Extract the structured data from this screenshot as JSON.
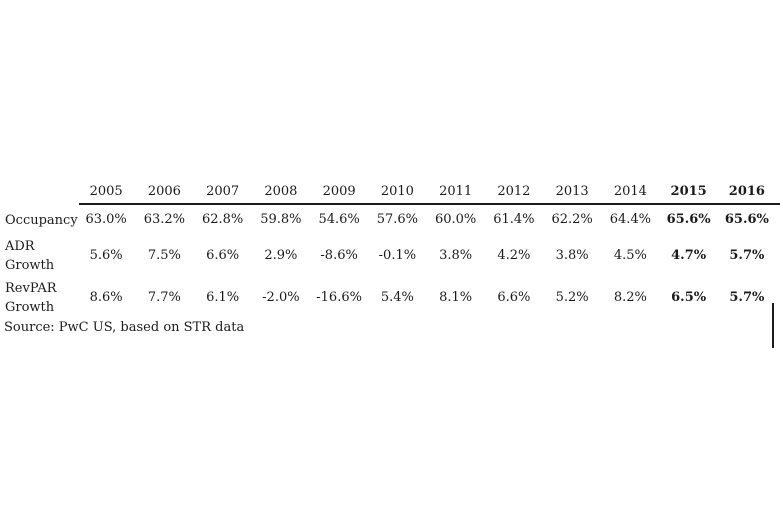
{
  "table": {
    "years": [
      "2005",
      "2006",
      "2007",
      "2008",
      "2009",
      "2010",
      "2011",
      "2012",
      "2013",
      "2014",
      "2015",
      "2016"
    ],
    "bold_years": [
      "2015",
      "2016"
    ],
    "rows": [
      {
        "id": "occupancy",
        "label": "Occupancy",
        "label_lines": [
          "Occupancy"
        ],
        "values": [
          "63.0%",
          "63.2%",
          "62.8%",
          "59.8%",
          "54.6%",
          "57.6%",
          "60.0%",
          "61.4%",
          "62.2%",
          "64.4%",
          "65.6%",
          "65.6%"
        ]
      },
      {
        "id": "adr-growth",
        "label": "ADR Growth",
        "label_lines": [
          "ADR",
          "Growth"
        ],
        "values": [
          "5.6%",
          "7.5%",
          "6.6%",
          "2.9%",
          "-8.6%",
          "-0.1%",
          "3.8%",
          "4.2%",
          "3.8%",
          "4.5%",
          "4.7%",
          "5.7%"
        ]
      },
      {
        "id": "revpar-growth",
        "label": "RevPAR Growth",
        "label_lines": [
          "RevPAR",
          "Growth"
        ],
        "values": [
          "8.6%",
          "7.7%",
          "6.1%",
          "-2.0%",
          "-16.6%",
          "5.4%",
          "8.1%",
          "6.6%",
          "5.2%",
          "8.2%",
          "6.5%",
          "5.7%"
        ]
      }
    ],
    "source_note": "Source: PwC US, based on STR data"
  },
  "colors": {
    "text": "#1b1b1b",
    "rule": "#1b1b1b",
    "background": "#ffffff"
  },
  "chart_data": {
    "type": "table",
    "categories": [
      "2005",
      "2006",
      "2007",
      "2008",
      "2009",
      "2010",
      "2011",
      "2012",
      "2013",
      "2014",
      "2015",
      "2016"
    ],
    "series": [
      {
        "name": "Occupancy",
        "unit": "%",
        "values": [
          63.0,
          63.2,
          62.8,
          59.8,
          54.6,
          57.6,
          60.0,
          61.4,
          62.2,
          64.4,
          65.6,
          65.6
        ]
      },
      {
        "name": "ADR Growth",
        "unit": "%",
        "values": [
          5.6,
          7.5,
          6.6,
          2.9,
          -8.6,
          -0.1,
          3.8,
          4.2,
          3.8,
          4.5,
          4.7,
          5.7
        ]
      },
      {
        "name": "RevPAR Growth",
        "unit": "%",
        "values": [
          8.6,
          7.7,
          6.1,
          -2.0,
          -16.6,
          5.4,
          8.1,
          6.6,
          5.2,
          8.2,
          6.5,
          5.7
        ]
      }
    ],
    "emphasized_columns": [
      "2015",
      "2016"
    ],
    "title": "",
    "notes": "Source: PwC US, based on STR data",
    "layout": "row labels left, years across top, header rule under year row, 2015-2016 values in bold (forecast years)"
  }
}
